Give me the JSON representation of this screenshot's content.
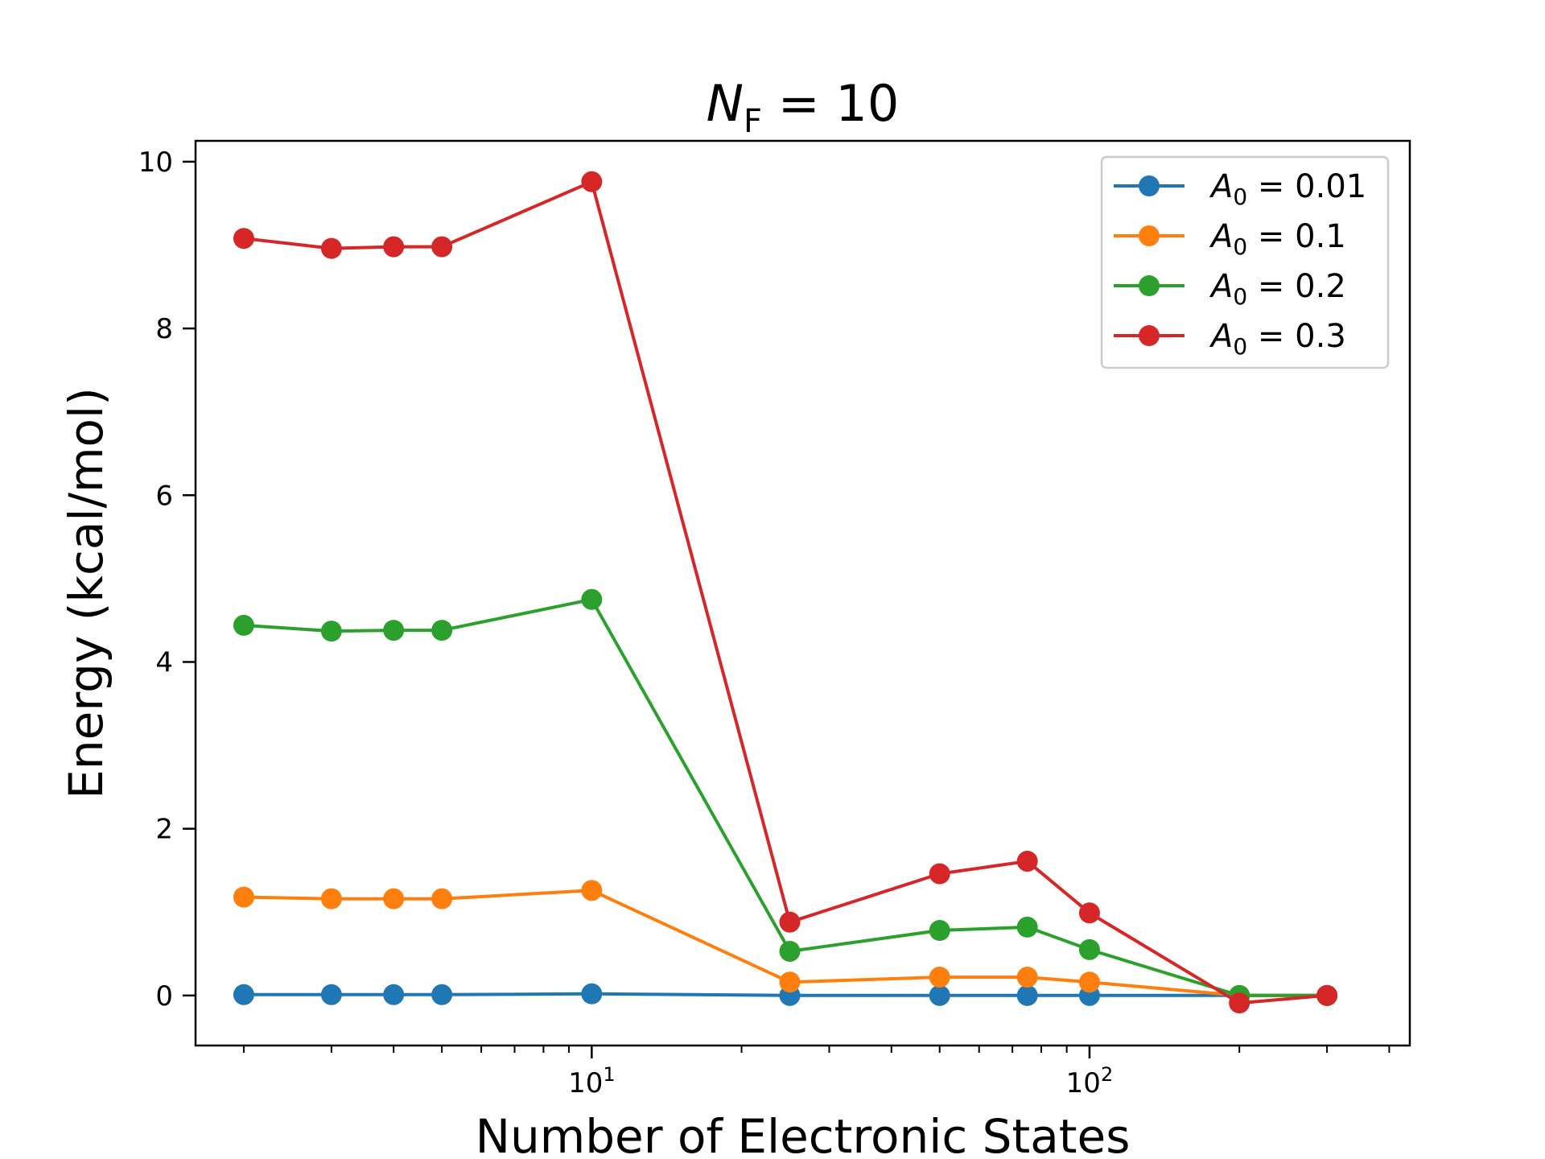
{
  "chart_data": {
    "type": "line",
    "title": {
      "var": "N",
      "sub": "F",
      "rest": " = 10"
    },
    "xlabel": "Number of Electronic States",
    "ylabel": "Energy (kcal/mol)",
    "xscale": "log",
    "xlim": [
      1.6,
      440
    ],
    "ylim": [
      -0.6,
      10.25
    ],
    "yticks": [
      0,
      2,
      4,
      6,
      8,
      10
    ],
    "xticks_major": [
      {
        "value": 10,
        "base": "10",
        "exp": "1"
      },
      {
        "value": 100,
        "base": "10",
        "exp": "2"
      }
    ],
    "xticks_minor": [
      2,
      3,
      4,
      5,
      6,
      7,
      8,
      9,
      20,
      30,
      40,
      50,
      60,
      70,
      80,
      90,
      200,
      300,
      400
    ],
    "grid": false,
    "legend_position": "top-right",
    "x": [
      2,
      3,
      4,
      5,
      10,
      25,
      50,
      75,
      100,
      200,
      300
    ],
    "series": [
      {
        "name_var": "A",
        "name_sub": "0",
        "name_rest": " = 0.01",
        "color": "#1f77b4",
        "values": [
          0.01,
          0.01,
          0.01,
          0.01,
          0.02,
          0.0,
          0.0,
          0.0,
          0.0,
          0.0,
          0.0
        ]
      },
      {
        "name_var": "A",
        "name_sub": "0",
        "name_rest": " = 0.1",
        "color": "#ff7f0e",
        "values": [
          1.18,
          1.16,
          1.16,
          1.16,
          1.26,
          0.16,
          0.22,
          0.22,
          0.16,
          0.0,
          0.0
        ]
      },
      {
        "name_var": "A",
        "name_sub": "0",
        "name_rest": " = 0.2",
        "color": "#2ca02c",
        "values": [
          4.44,
          4.37,
          4.38,
          4.38,
          4.75,
          0.53,
          0.78,
          0.82,
          0.55,
          0.0,
          0.0
        ]
      },
      {
        "name_var": "A",
        "name_sub": "0",
        "name_rest": " = 0.3",
        "color": "#d62728",
        "values": [
          9.08,
          8.96,
          8.98,
          8.98,
          9.76,
          0.88,
          1.46,
          1.61,
          0.99,
          -0.09,
          0.0
        ]
      }
    ]
  }
}
